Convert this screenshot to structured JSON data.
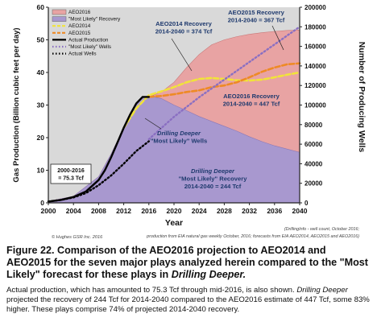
{
  "chart_data": {
    "type": "area",
    "title": "",
    "xlabel": "Year",
    "ylabel_left": "Gas Production (Billion cubic feet per day)",
    "ylabel_right": "Number of Producing Wells",
    "xlim": [
      2000,
      2040
    ],
    "ylim_left": [
      0,
      60
    ],
    "ylim_right": [
      0,
      200000
    ],
    "x_ticks": [
      "2000",
      "2004",
      "2008",
      "2012",
      "2016",
      "2020",
      "2024",
      "2028",
      "2032",
      "2036",
      "2040"
    ],
    "y_left_ticks": [
      "0",
      "10",
      "20",
      "30",
      "40",
      "50",
      "60"
    ],
    "y_right_ticks": [
      "0",
      "20000",
      "40000",
      "60000",
      "80000",
      "100000",
      "120000",
      "140000",
      "160000",
      "180000",
      "200000"
    ],
    "grid": false,
    "legend_position": "top-left",
    "series": [
      {
        "name": "AEO2016",
        "kind": "area",
        "color": "#e8a3a3",
        "x": [
          2000,
          2004,
          2008,
          2010,
          2012,
          2014,
          2015,
          2016,
          2018,
          2020,
          2022,
          2024,
          2026,
          2028,
          2030,
          2032,
          2034,
          2036,
          2038,
          2040
        ],
        "y": [
          0.5,
          2,
          8,
          15,
          23,
          30.5,
          32.5,
          32.5,
          34,
          37,
          41.5,
          45.5,
          48.5,
          50,
          51,
          51.7,
          52.2,
          52.6,
          52.9,
          53
        ]
      },
      {
        "name": "\"Most Likely\" Recovery",
        "kind": "area",
        "color": "#a898cf",
        "x": [
          2000,
          2004,
          2008,
          2010,
          2012,
          2014,
          2015,
          2016,
          2018,
          2020,
          2022,
          2024,
          2026,
          2028,
          2030,
          2032,
          2034,
          2036,
          2038,
          2040
        ],
        "y": [
          0.5,
          2,
          8,
          15,
          23,
          30.5,
          32.5,
          32.8,
          32,
          30,
          28.3,
          26.5,
          25,
          23.5,
          22,
          20.3,
          18.8,
          17.5,
          16.5,
          15.5
        ]
      },
      {
        "name": "AEO2014",
        "kind": "line",
        "color": "#f1e33a",
        "dash": "dashed",
        "x": [
          2012,
          2014,
          2016,
          2018,
          2020,
          2022,
          2024,
          2026,
          2028,
          2030,
          2032,
          2034,
          2036,
          2038,
          2040
        ],
        "y": [
          23,
          29,
          33,
          34.2,
          35.5,
          37,
          38,
          38.3,
          38,
          37.6,
          37.5,
          37.8,
          38.5,
          39.3,
          40
        ]
      },
      {
        "name": "AEO2015",
        "kind": "line",
        "color": "#ee8a25",
        "dash": "dashed",
        "x": [
          2016,
          2018,
          2020,
          2022,
          2024,
          2026,
          2028,
          2030,
          2032,
          2034,
          2036,
          2038,
          2040
        ],
        "y": [
          32.5,
          32.8,
          33.3,
          34,
          34.5,
          35.5,
          36,
          37,
          38.5,
          40.2,
          41.5,
          42.5,
          42.8
        ]
      },
      {
        "name": "Actual Production",
        "kind": "line",
        "color": "#000000",
        "dash": "solid",
        "x": [
          2000,
          2002,
          2004,
          2006,
          2008,
          2009,
          2010,
          2011,
          2012,
          2013,
          2014,
          2015,
          2016
        ],
        "y": [
          0.4,
          0.9,
          1.8,
          3.5,
          7,
          10,
          14,
          18.5,
          23,
          27,
          30.5,
          32.5,
          32.5
        ]
      },
      {
        "name": "\"Most Likely\" Wells",
        "kind": "line",
        "axis": "right",
        "color": "#8a6fc2",
        "dash": "dotted",
        "x": [
          2016,
          2020,
          2024,
          2028,
          2032,
          2036,
          2040
        ],
        "y": [
          65000,
          88000,
          108000,
          126000,
          144000,
          162000,
          180000
        ]
      },
      {
        "name": "Actual Wells",
        "kind": "line",
        "axis": "right",
        "color": "#000000",
        "dash": "dotted",
        "x": [
          2000,
          2002,
          2004,
          2006,
          2008,
          2010,
          2012,
          2014,
          2016
        ],
        "y": [
          1500,
          3000,
          5500,
          10000,
          18000,
          28000,
          40000,
          53000,
          63000
        ]
      }
    ],
    "annotations": [
      {
        "text_lines": [
          "AEO2014 Recovery",
          "2014-2040 = 374 Tcf"
        ],
        "color": "#1f3a6e"
      },
      {
        "text_lines": [
          "AEO2015 Recovery",
          "2014-2040 = 367 Tcf"
        ],
        "color": "#1f3a6e"
      },
      {
        "text_lines": [
          "AEO2016 Recovery",
          "2014-2040 = 447 Tcf"
        ],
        "color": "#1f3a6e"
      },
      {
        "text_lines": [
          "Drilling Deeper",
          "\"Most Likely\" Wells"
        ],
        "color": "#1f3a6e"
      },
      {
        "text_lines": [
          "Drilling Deeper",
          "\"Most Likely\" Recovery",
          "2014-2040 = 244 Tcf"
        ],
        "color": "#1f3a6e"
      },
      {
        "text_lines": [
          "2000-2016",
          "= 75.3 Tcf"
        ],
        "color": "#1f3a6e"
      }
    ],
    "footnote_left": "© Hughes GSR Inc. 2016",
    "footnote_right_lines": [
      "(DrillingInfo - well count, October 2016;",
      "production from EIA natural gas weekly October, 2016; forecasts from EIA AEO2014, AEO2015 and AEO2016)"
    ]
  },
  "caption": {
    "figure_text": "Figure 22. Comparison of the AEO2016 projection to AEO2014 and AEO2015 for the seven major plays analyzed herein compared to the \"Most Likely\" forecast for these plays in ",
    "figure_italic": "Drilling Deeper.",
    "body_1": "Actual production, which has amounted to 75.3 Tcf through mid-2016, is also shown. ",
    "body_italic": "Drilling Deeper",
    "body_2": " projected the recovery of 244 Tcf for 2014-2040 compared to the AEO2016 estimate of 447 Tcf, some 83% higher. These plays comprise 74% of projected 2014-2040 recovery."
  }
}
